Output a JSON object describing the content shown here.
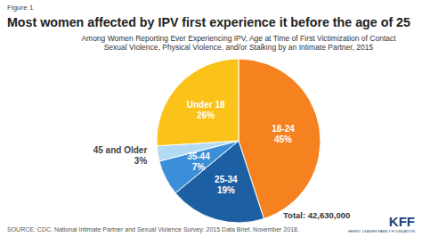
{
  "chart_data": {
    "type": "pie",
    "title": "Most women affected by IPV first experience it before the age of 25",
    "subtitle": [
      "Among Women Reporting Ever Experiencing IPV, Age at Time of First Victimization of Contact",
      "Sexual Violence, Physical Violence, and/or Stalking by an Intimate Partner, 2015"
    ],
    "categories": [
      "18-24",
      "25-34",
      "35-44",
      "45 and Older",
      "Under 18"
    ],
    "values": [
      45,
      19,
      7,
      3,
      26
    ],
    "value_labels": [
      "45%",
      "19%",
      "7%",
      "3%",
      "26%"
    ],
    "colors": [
      "#f5821f",
      "#1d5fa3",
      "#3a8fd8",
      "#b3daf5",
      "#fbc21a"
    ],
    "data_labels": true,
    "annotations": [
      "Figure 1",
      "Total: 42,630,000",
      "SOURCE: CDC, National Intimate Partner and Sexual Violence Survey: 2015 Data Brief, November 2018.",
      "KFF",
      "HENRY J KAISER FAMILY FOUNDATION"
    ]
  }
}
